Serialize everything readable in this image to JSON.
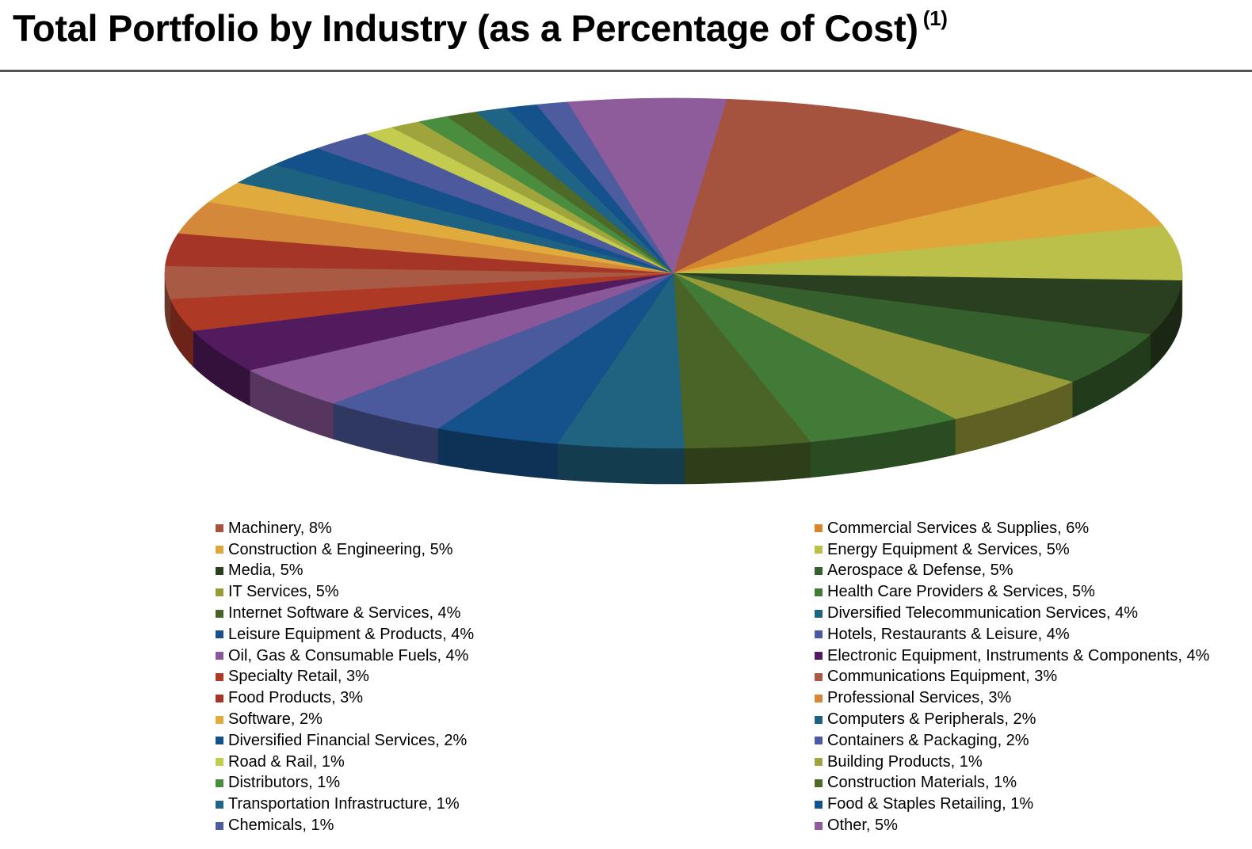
{
  "title": "Total Portfolio by Industry (as a Percentage of Cost)",
  "title_note": "(1)",
  "chart_data": {
    "type": "pie",
    "title": "Total Portfolio by Industry (as a Percentage of Cost)",
    "legend_placement": "bottom",
    "slices": [
      {
        "label": "Machinery, 8%",
        "value": 8,
        "color": "#A5523F"
      },
      {
        "label": "Commercial Services & Supplies, 6%",
        "value": 6,
        "color": "#D4862F"
      },
      {
        "label": "Construction & Engineering, 5%",
        "value": 5,
        "color": "#DFA73A"
      },
      {
        "label": "Energy Equipment & Services, 5%",
        "value": 5,
        "color": "#BAC04A"
      },
      {
        "label": "Media, 5%",
        "value": 5,
        "color": "#2A3F20"
      },
      {
        "label": "Aerospace & Defense, 5%",
        "value": 5,
        "color": "#355F2C"
      },
      {
        "label": "IT Services, 5%",
        "value": 5,
        "color": "#989C38"
      },
      {
        "label": "Health Care Providers & Services, 5%",
        "value": 5,
        "color": "#427A37"
      },
      {
        "label": "Internet Software & Services, 4%",
        "value": 4,
        "color": "#4A6427"
      },
      {
        "label": "Diversified Telecommunication Services, 4%",
        "value": 4,
        "color": "#1F6380"
      },
      {
        "label": "Leisure Equipment & Products, 4%",
        "value": 4,
        "color": "#15518A"
      },
      {
        "label": "Hotels, Restaurants & Leisure, 4%",
        "value": 4,
        "color": "#4B5A9C"
      },
      {
        "label": "Oil, Gas & Consumable Fuels, 4%",
        "value": 4,
        "color": "#8A5799"
      },
      {
        "label": "Electronic Equipment, Instruments & Components, 4%",
        "value": 4,
        "color": "#521B5E"
      },
      {
        "label": "Specialty Retail, 3%",
        "value": 3,
        "color": "#AE3A26"
      },
      {
        "label": "Communications Equipment, 3%",
        "value": 3,
        "color": "#A85A45"
      },
      {
        "label": "Food Products, 3%",
        "value": 3,
        "color": "#A53526"
      },
      {
        "label": "Professional Services, 3%",
        "value": 3,
        "color": "#D3883A"
      },
      {
        "label": "Software, 2%",
        "value": 2,
        "color": "#E1AA3C"
      },
      {
        "label": "Computers & Peripherals, 2%",
        "value": 2,
        "color": "#1E6282"
      },
      {
        "label": "Diversified Financial Services, 2%",
        "value": 2,
        "color": "#14508A"
      },
      {
        "label": "Containers & Packaging, 2%",
        "value": 2,
        "color": "#4C5A9D"
      },
      {
        "label": "Road & Rail, 1%",
        "value": 1,
        "color": "#C3CC4F"
      },
      {
        "label": "Building Products, 1%",
        "value": 1,
        "color": "#9FA43C"
      },
      {
        "label": "Distributors, 1%",
        "value": 1,
        "color": "#4A8D3E"
      },
      {
        "label": "Construction Materials, 1%",
        "value": 1,
        "color": "#4D6A29"
      },
      {
        "label": "Transportation Infrastructure, 1%",
        "value": 1,
        "color": "#1F6484"
      },
      {
        "label": "Food & Staples Retailing, 1%",
        "value": 1,
        "color": "#15518B"
      },
      {
        "label": "Chemicals, 1%",
        "value": 1,
        "color": "#4D5C9E"
      },
      {
        "label": "Other, 5%",
        "value": 5,
        "color": "#8E5B9B"
      }
    ]
  }
}
